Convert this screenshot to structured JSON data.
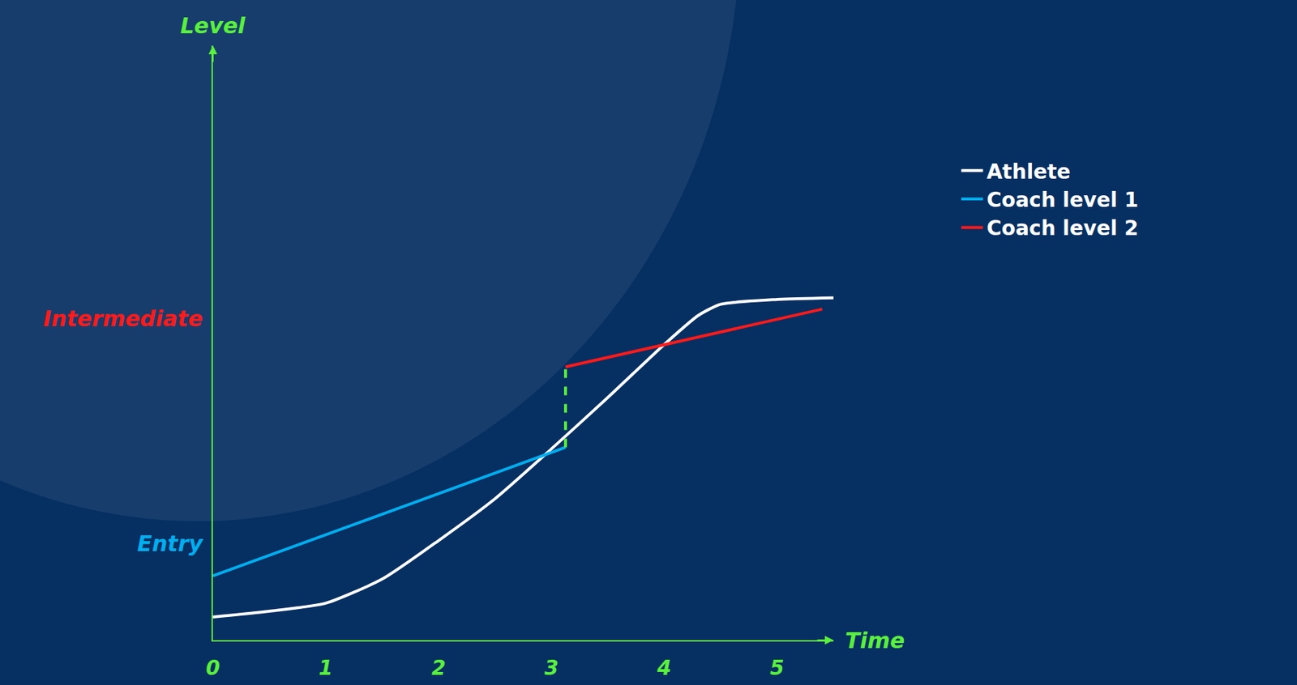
{
  "chart_data": {
    "type": "line",
    "x_label": "Time",
    "y_label": "Level",
    "xlim": [
      0,
      5.5
    ],
    "xticks": [
      0,
      1,
      2,
      3,
      4,
      5
    ],
    "ylim": [
      0,
      18.5
    ],
    "yticks": [
      {
        "value": 3,
        "label": "Entry"
      },
      {
        "value": 10,
        "label": "Intermediate"
      }
    ],
    "grid": false,
    "legend": "right",
    "series": [
      {
        "name": "Athlete",
        "color": "#ffffff",
        "line_style": "solid",
        "x": [
          0,
          0.5,
          1,
          1.5,
          2,
          2.5,
          3,
          3.5,
          4,
          4.3,
          4.5,
          5,
          5.5
        ],
        "values": [
          0.72,
          0.9,
          1.15,
          1.9,
          3.1,
          4.4,
          5.95,
          7.55,
          9.2,
          10.1,
          10.45,
          10.6,
          10.65
        ]
      },
      {
        "name": "Coach level 1",
        "color": "#00aeef",
        "line_style": "solid",
        "x": [
          0,
          3.125
        ],
        "values": [
          2.0,
          6.0
        ]
      },
      {
        "name": "Coach level 2",
        "color": "#ff1a1a",
        "line_style": "solid",
        "x": [
          3.125,
          5.4
        ],
        "values": [
          8.5,
          10.3
        ]
      },
      {
        "color": "#5af03c",
        "line_style": "dashed",
        "x": [
          3.125,
          3.125
        ],
        "values": [
          6.0,
          8.5
        ]
      }
    ]
  }
}
